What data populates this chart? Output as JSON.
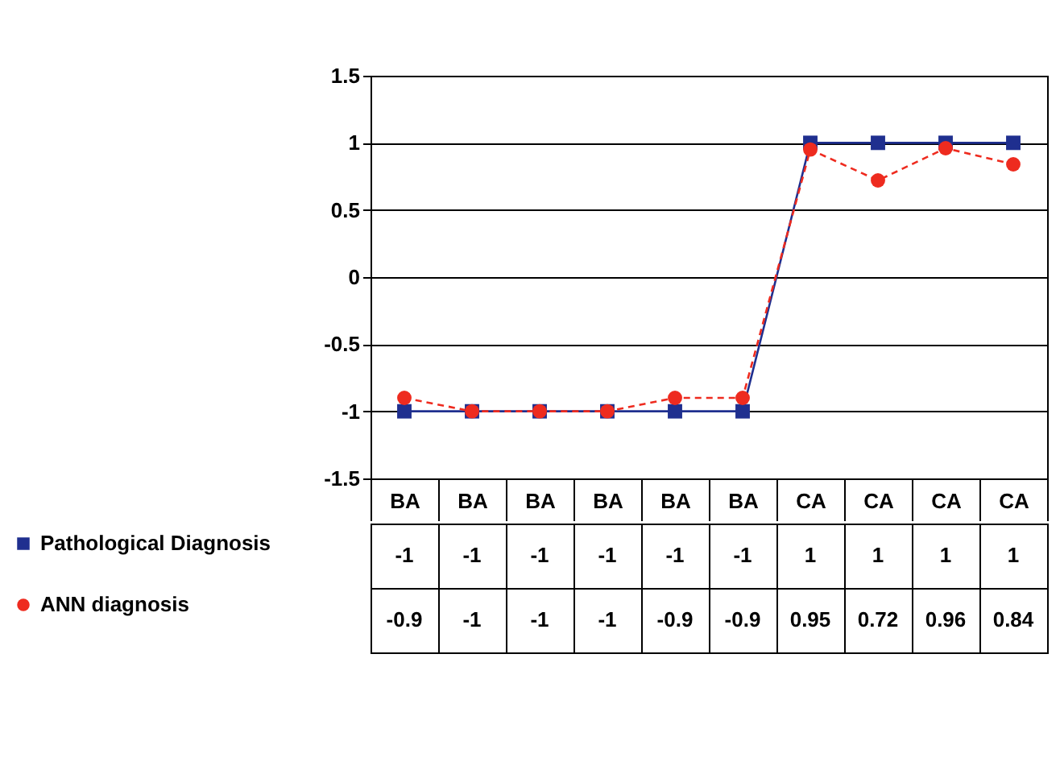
{
  "chart_data": {
    "type": "line",
    "categories": [
      "BA",
      "BA",
      "BA",
      "BA",
      "BA",
      "BA",
      "CA",
      "CA",
      "CA",
      "CA"
    ],
    "series": [
      {
        "name": "Pathological Diagnosis",
        "color": "#1f2f8f",
        "marker": "square",
        "line_style": "solid",
        "values": [
          -1,
          -1,
          -1,
          -1,
          -1,
          -1,
          1,
          1,
          1,
          1
        ]
      },
      {
        "name": "ANN diagnosis",
        "color": "#ee2b1f",
        "marker": "circle",
        "line_style": "dashed",
        "values": [
          -0.9,
          -1,
          -1,
          -1,
          -0.9,
          -0.9,
          0.95,
          0.72,
          0.96,
          0.84
        ]
      }
    ],
    "ylim": [
      -1.5,
      1.5
    ],
    "yticks": [
      -1.5,
      -1,
      -0.5,
      0,
      0.5,
      1,
      1.5
    ],
    "grid": "y",
    "legend": "bottom left",
    "data_labels": true
  }
}
